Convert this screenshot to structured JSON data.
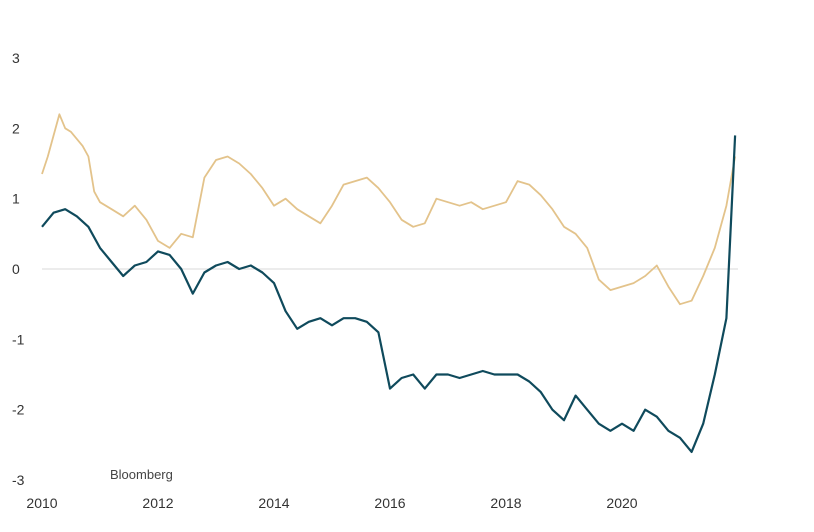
{
  "chart_data": {
    "type": "line",
    "title": "",
    "xlabel": "",
    "ylabel": "",
    "source": "Bloomberg",
    "xlim": [
      2010.0,
      2022.0
    ],
    "ylim": [
      -3,
      3
    ],
    "x_ticks": [
      2010,
      2012,
      2014,
      2016,
      2018,
      2020
    ],
    "y_ticks": [
      3,
      2,
      1,
      0,
      -1,
      -2,
      -3
    ],
    "zero_line": true,
    "grid": false,
    "legend": "none",
    "series": [
      {
        "color": "#e3c38b",
        "points": [
          [
            2010.0,
            1.35
          ],
          [
            2010.1,
            1.6
          ],
          [
            2010.2,
            1.9
          ],
          [
            2010.3,
            2.2
          ],
          [
            2010.4,
            2.0
          ],
          [
            2010.5,
            1.95
          ],
          [
            2010.6,
            1.85
          ],
          [
            2010.7,
            1.75
          ],
          [
            2010.8,
            1.6
          ],
          [
            2010.9,
            1.1
          ],
          [
            2011.0,
            0.95
          ],
          [
            2011.2,
            0.85
          ],
          [
            2011.4,
            0.75
          ],
          [
            2011.6,
            0.9
          ],
          [
            2011.8,
            0.7
          ],
          [
            2012.0,
            0.4
          ],
          [
            2012.2,
            0.3
          ],
          [
            2012.4,
            0.5
          ],
          [
            2012.6,
            0.45
          ],
          [
            2012.8,
            1.3
          ],
          [
            2013.0,
            1.55
          ],
          [
            2013.2,
            1.6
          ],
          [
            2013.4,
            1.5
          ],
          [
            2013.6,
            1.35
          ],
          [
            2013.8,
            1.15
          ],
          [
            2014.0,
            0.9
          ],
          [
            2014.2,
            1.0
          ],
          [
            2014.4,
            0.85
          ],
          [
            2014.6,
            0.75
          ],
          [
            2014.8,
            0.65
          ],
          [
            2015.0,
            0.9
          ],
          [
            2015.2,
            1.2
          ],
          [
            2015.4,
            1.25
          ],
          [
            2015.6,
            1.3
          ],
          [
            2015.8,
            1.15
          ],
          [
            2016.0,
            0.95
          ],
          [
            2016.2,
            0.7
          ],
          [
            2016.4,
            0.6
          ],
          [
            2016.6,
            0.65
          ],
          [
            2016.8,
            1.0
          ],
          [
            2017.0,
            0.95
          ],
          [
            2017.2,
            0.9
          ],
          [
            2017.4,
            0.95
          ],
          [
            2017.6,
            0.85
          ],
          [
            2017.8,
            0.9
          ],
          [
            2018.0,
            0.95
          ],
          [
            2018.2,
            1.25
          ],
          [
            2018.4,
            1.2
          ],
          [
            2018.6,
            1.05
          ],
          [
            2018.8,
            0.85
          ],
          [
            2019.0,
            0.6
          ],
          [
            2019.2,
            0.5
          ],
          [
            2019.4,
            0.3
          ],
          [
            2019.6,
            -0.15
          ],
          [
            2019.8,
            -0.3
          ],
          [
            2020.0,
            -0.25
          ],
          [
            2020.2,
            -0.2
          ],
          [
            2020.4,
            -0.1
          ],
          [
            2020.6,
            0.05
          ],
          [
            2020.8,
            -0.25
          ],
          [
            2021.0,
            -0.5
          ],
          [
            2021.2,
            -0.45
          ],
          [
            2021.4,
            -0.1
          ],
          [
            2021.6,
            0.3
          ],
          [
            2021.8,
            0.9
          ],
          [
            2021.95,
            1.6
          ]
        ]
      },
      {
        "color": "#0f4a5c",
        "points": [
          [
            2010.0,
            0.6
          ],
          [
            2010.2,
            0.8
          ],
          [
            2010.4,
            0.85
          ],
          [
            2010.6,
            0.75
          ],
          [
            2010.8,
            0.6
          ],
          [
            2011.0,
            0.3
          ],
          [
            2011.2,
            0.1
          ],
          [
            2011.4,
            -0.1
          ],
          [
            2011.6,
            0.05
          ],
          [
            2011.8,
            0.1
          ],
          [
            2012.0,
            0.25
          ],
          [
            2012.2,
            0.2
          ],
          [
            2012.4,
            0.0
          ],
          [
            2012.6,
            -0.35
          ],
          [
            2012.8,
            -0.05
          ],
          [
            2013.0,
            0.05
          ],
          [
            2013.2,
            0.1
          ],
          [
            2013.4,
            0.0
          ],
          [
            2013.6,
            0.05
          ],
          [
            2013.8,
            -0.05
          ],
          [
            2014.0,
            -0.2
          ],
          [
            2014.2,
            -0.6
          ],
          [
            2014.4,
            -0.85
          ],
          [
            2014.6,
            -0.75
          ],
          [
            2014.8,
            -0.7
          ],
          [
            2015.0,
            -0.8
          ],
          [
            2015.2,
            -0.7
          ],
          [
            2015.4,
            -0.7
          ],
          [
            2015.6,
            -0.75
          ],
          [
            2015.8,
            -0.9
          ],
          [
            2016.0,
            -1.7
          ],
          [
            2016.2,
            -1.55
          ],
          [
            2016.4,
            -1.5
          ],
          [
            2016.6,
            -1.7
          ],
          [
            2016.8,
            -1.5
          ],
          [
            2017.0,
            -1.5
          ],
          [
            2017.2,
            -1.55
          ],
          [
            2017.4,
            -1.5
          ],
          [
            2017.6,
            -1.45
          ],
          [
            2017.8,
            -1.5
          ],
          [
            2018.0,
            -1.5
          ],
          [
            2018.2,
            -1.5
          ],
          [
            2018.4,
            -1.6
          ],
          [
            2018.6,
            -1.75
          ],
          [
            2018.8,
            -2.0
          ],
          [
            2019.0,
            -2.15
          ],
          [
            2019.2,
            -1.8
          ],
          [
            2019.4,
            -2.0
          ],
          [
            2019.6,
            -2.2
          ],
          [
            2019.8,
            -2.3
          ],
          [
            2020.0,
            -2.2
          ],
          [
            2020.2,
            -2.3
          ],
          [
            2020.4,
            -2.0
          ],
          [
            2020.6,
            -2.1
          ],
          [
            2020.8,
            -2.3
          ],
          [
            2021.0,
            -2.4
          ],
          [
            2021.2,
            -2.6
          ],
          [
            2021.4,
            -2.2
          ],
          [
            2021.6,
            -1.5
          ],
          [
            2021.8,
            -0.7
          ],
          [
            2021.95,
            1.9
          ]
        ]
      }
    ]
  }
}
